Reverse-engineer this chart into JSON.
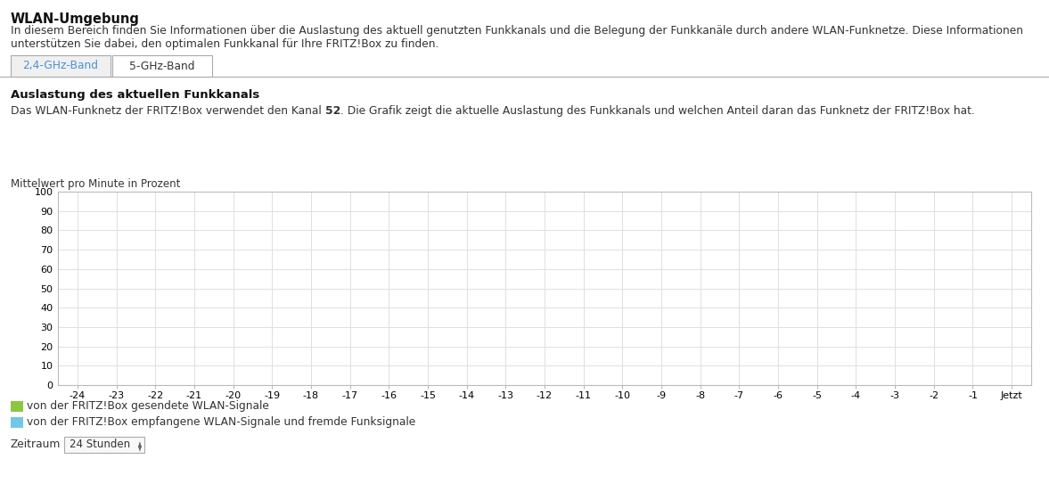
{
  "title": "WLAN-Umgebung",
  "description_line1": "In diesem Bereich finden Sie Informationen über die Auslastung des aktuell genutzten Funkkanals und die Belegung der Funkkanäle durch andere WLAN-Funknetze. Diese Informationen",
  "description_line2": "unterstützen Sie dabei, den optimalen Funkkanal für Ihre FRITZ!Box zu finden.",
  "tab1": "2,4-GHz-Band",
  "tab2": "5-GHz-Band",
  "section_title": "Auslastung des aktuellen Funkkanals",
  "section_desc_plain": "Das WLAN-Funknetz der FRITZ!Box verwendet den Kanal ",
  "section_desc_bold": "52",
  "section_desc_rest": ". Die Grafik zeigt die aktuelle Auslastung des Funkkanals und welchen Anteil daran das Funknetz der FRITZ!Box hat.",
  "ylabel": "Mittelwert pro Minute in Prozent",
  "yticks": [
    0,
    10,
    20,
    30,
    40,
    50,
    60,
    70,
    80,
    90,
    100
  ],
  "xticks": [
    -24,
    -23,
    -22,
    -21,
    -20,
    -19,
    -18,
    -17,
    -16,
    -15,
    -14,
    -13,
    -12,
    -11,
    -10,
    -9,
    -8,
    -7,
    -6,
    -5,
    -4,
    -3,
    -2,
    -1
  ],
  "xlabel_last": "Jetzt",
  "xlim_min": -24.5,
  "xlim_max": 0.5,
  "ylim_min": 0,
  "ylim_max": 100,
  "legend1_color": "#8dc63f",
  "legend2_color": "#72c7e7",
  "legend1_text": "von der FRITZ!Box gesendete WLAN-Signale",
  "legend2_text": "von der FRITZ!Box empfangene WLAN-Signale und fremde Funksignale",
  "zeitraum_label": "Zeitraum",
  "zeitraum_value": "24 Stunden",
  "grid_color": "#e0e0e0",
  "bg_color": "#ffffff",
  "tab1_text_color": "#4a90d9",
  "tab2_text_color": "#333333",
  "title_color": "#111111",
  "text_color": "#333333",
  "tab_border_color": "#aaaaaa",
  "tab1_bg": "#f0f0f0",
  "tab2_bg": "#ffffff",
  "spine_color": "#bbbbbb"
}
